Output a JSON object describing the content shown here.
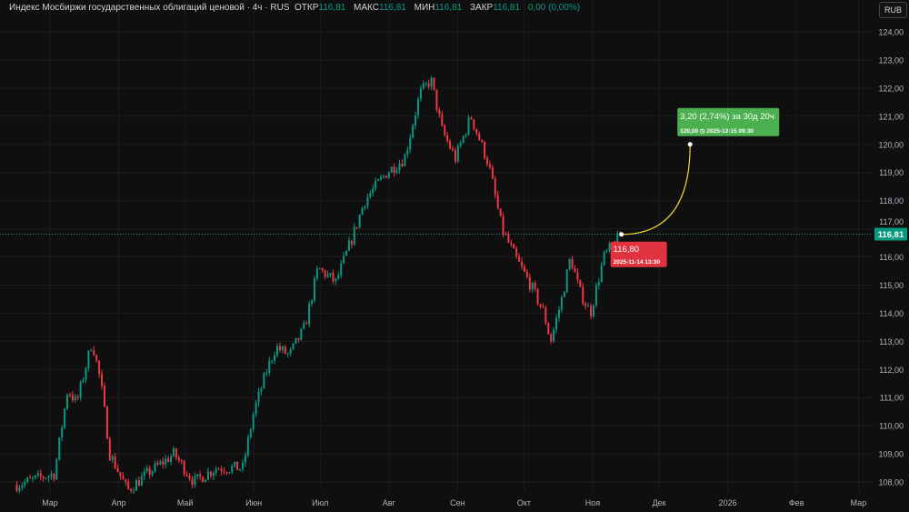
{
  "header": {
    "title": "Индекс Мосбиржи государственных облигаций ценовой · 4ч · RUS",
    "open_label": "ОТКР",
    "open": "116,81",
    "high_label": "МАКС",
    "high": "116,81",
    "low_label": "МИН",
    "low": "116,81",
    "close_label": "ЗАКР",
    "close": "116,81",
    "change": "0,00 (0,00%)",
    "currency": "RUB"
  },
  "chart_data": {
    "type": "candlestick",
    "title": "Индекс Мосбиржи государственных облигаций ценовой",
    "interval": "4ч",
    "ylim": [
      107.5,
      124.5
    ],
    "y_ticks": [
      "124,00",
      "123,00",
      "122,00",
      "121,00",
      "120,00",
      "119,00",
      "118,00",
      "117,00",
      "116,00",
      "115,00",
      "114,00",
      "113,00",
      "112,00",
      "111,00",
      "110,00",
      "109,00",
      "108,00"
    ],
    "x_ticks": [
      {
        "label": "Мар",
        "date": "2025-03-01"
      },
      {
        "label": "Апр",
        "date": "2025-04-01"
      },
      {
        "label": "Май",
        "date": "2025-05-01"
      },
      {
        "label": "Июн",
        "date": "2025-06-01"
      },
      {
        "label": "Июл",
        "date": "2025-07-01"
      },
      {
        "label": "Авг",
        "date": "2025-08-01"
      },
      {
        "label": "Сен",
        "date": "2025-09-01"
      },
      {
        "label": "Окт",
        "date": "2025-10-01"
      },
      {
        "label": "Ноя",
        "date": "2025-11-01"
      },
      {
        "label": "Дек",
        "date": "2025-12-01"
      },
      {
        "label": "2026",
        "date": "2026-01-01"
      },
      {
        "label": "Фев",
        "date": "2026-02-01"
      },
      {
        "label": "Мар",
        "date": "2026-03-01"
      }
    ],
    "price_path": [
      [
        "2025-02-14",
        107.9
      ],
      [
        "2025-03-03",
        108.3
      ],
      [
        "2025-03-09",
        111.3
      ],
      [
        "2025-03-13",
        110.8
      ],
      [
        "2025-03-20",
        113.0
      ],
      [
        "2025-03-24",
        111.5
      ],
      [
        "2025-03-28",
        109.0
      ],
      [
        "2025-04-05",
        107.7
      ],
      [
        "2025-04-14",
        108.3
      ],
      [
        "2025-04-26",
        109.0
      ],
      [
        "2025-05-05",
        108.0
      ],
      [
        "2025-05-15",
        108.5
      ],
      [
        "2025-05-21",
        108.5
      ],
      [
        "2025-05-27",
        108.5
      ],
      [
        "2025-06-01",
        110.5
      ],
      [
        "2025-06-07",
        112.0
      ],
      [
        "2025-06-11",
        112.8
      ],
      [
        "2025-06-17",
        112.5
      ],
      [
        "2025-06-24",
        113.5
      ],
      [
        "2025-06-30",
        115.6
      ],
      [
        "2025-07-08",
        115.1
      ],
      [
        "2025-07-16",
        116.8
      ],
      [
        "2025-07-21",
        118.0
      ],
      [
        "2025-07-31",
        119.0
      ],
      [
        "2025-08-08",
        119.5
      ],
      [
        "2025-08-15",
        121.8
      ],
      [
        "2025-08-20",
        122.3
      ],
      [
        "2025-08-25",
        120.5
      ],
      [
        "2025-08-31",
        119.5
      ],
      [
        "2025-09-07",
        121.0
      ],
      [
        "2025-09-15",
        119.3
      ],
      [
        "2025-09-21",
        117.0
      ],
      [
        "2025-09-27",
        116.0
      ],
      [
        "2025-10-04",
        115.0
      ],
      [
        "2025-10-10",
        114.0
      ],
      [
        "2025-10-13",
        113.0
      ],
      [
        "2025-10-18",
        114.5
      ],
      [
        "2025-10-22",
        116.0
      ],
      [
        "2025-10-26",
        114.8
      ],
      [
        "2025-10-31",
        114.0
      ],
      [
        "2025-11-06",
        116.0
      ],
      [
        "2025-11-14",
        116.81
      ]
    ],
    "last_price": {
      "value": 116.81,
      "label": "116,81"
    },
    "colors": {
      "up": "#089981",
      "down": "#f23645",
      "forecast_line": "#f0d43a",
      "label_up": "#4caf50",
      "label_down": "#e0323f"
    },
    "forecast": {
      "start": {
        "date": "2025-11-14",
        "value": 116.8,
        "label": "116,80",
        "time_label": "2025-11-14 13:30"
      },
      "end": {
        "date": "2025-12-15",
        "value": 120.0,
        "label": "3,20 (2,74%) за 30д 20ч",
        "sub_label": "120,00 ◷ 2025-12-15  09:30"
      }
    }
  }
}
